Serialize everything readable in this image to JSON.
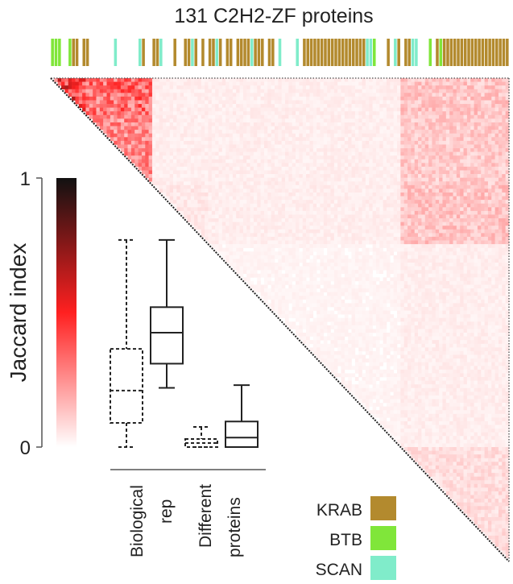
{
  "chart_data": [
    {
      "type": "heatmap",
      "title": "131 C2H2-ZF proteins",
      "n_proteins": 131,
      "layout": "upper-triangle",
      "colorbar": {
        "label": "Jaccard index",
        "range": [
          0,
          1
        ],
        "ticks": [
          "0",
          "1"
        ],
        "colors": [
          "#ffffff",
          "#ff2020",
          "#111111"
        ]
      },
      "annotation_runs": [
        [
          "BTB",
          3
        ],
        [
          "none",
          2
        ],
        [
          "BTB",
          1
        ],
        [
          "KRAB",
          2
        ],
        [
          "none",
          1
        ],
        [
          "KRAB",
          2
        ],
        [
          "none",
          7
        ],
        [
          "SCAN",
          1
        ],
        [
          "none",
          6
        ],
        [
          "SCAN",
          1
        ],
        [
          "KRAB",
          1
        ],
        [
          "none",
          2
        ],
        [
          "KRAB",
          2
        ],
        [
          "SCAN",
          1
        ],
        [
          "none",
          3
        ],
        [
          "KRAB",
          1
        ],
        [
          "none",
          2
        ],
        [
          "KRAB",
          2
        ],
        [
          "SCAN",
          1
        ],
        [
          "KRAB",
          1
        ],
        [
          "none",
          1
        ],
        [
          "KRAB",
          1
        ],
        [
          "none",
          1
        ],
        [
          "KRAB",
          2
        ],
        [
          "SCAN",
          1
        ],
        [
          "KRAB",
          1
        ],
        [
          "none",
          1
        ],
        [
          "KRAB",
          2
        ],
        [
          "none",
          1
        ],
        [
          "KRAB",
          4
        ],
        [
          "SCAN",
          1
        ],
        [
          "KRAB",
          3
        ],
        [
          "none",
          1
        ],
        [
          "KRAB",
          2
        ],
        [
          "none",
          1
        ],
        [
          "SCAN",
          1
        ],
        [
          "none",
          4
        ],
        [
          "SCAN",
          1
        ],
        [
          "none",
          1
        ],
        [
          "KRAB",
          18
        ],
        [
          "SCAN",
          2
        ],
        [
          "BTB",
          1
        ],
        [
          "none",
          3
        ],
        [
          "KRAB",
          1
        ],
        [
          "none",
          1
        ],
        [
          "SCAN",
          1
        ],
        [
          "KRAB",
          1
        ],
        [
          "none",
          1
        ],
        [
          "KRAB",
          2
        ],
        [
          "SCAN",
          2
        ],
        [
          "none",
          3
        ],
        [
          "BTB",
          1
        ],
        [
          "none",
          1
        ],
        [
          "KRAB",
          1
        ],
        [
          "BTB",
          1
        ],
        [
          "KRAB",
          19
        ]
      ],
      "block_boundaries": [
        0,
        10,
        29,
        45,
        100,
        131
      ],
      "block_mean_jaccard": [
        [
          0.35,
          0.25,
          0.03,
          0.03,
          0.1
        ],
        [
          0.25,
          0.2,
          0.03,
          0.03,
          0.09
        ],
        [
          0.03,
          0.03,
          0.04,
          0.03,
          0.1
        ],
        [
          0.03,
          0.03,
          0.03,
          0.02,
          0.03
        ],
        [
          0.1,
          0.09,
          0.1,
          0.03,
          0.06
        ]
      ]
    },
    {
      "type": "box",
      "ylabel": "Jaccard index",
      "ylim": [
        0,
        1
      ],
      "yticks": [
        "0",
        "1"
      ],
      "groups": [
        {
          "label_lines": [
            "Biological",
            "rep"
          ],
          "boxes": [
            {
              "style": "dashed",
              "min": 0.0,
              "q1": 0.09,
              "median": 0.21,
              "q3": 0.365,
              "max": 0.77
            },
            {
              "style": "solid",
              "min": 0.22,
              "q1": 0.31,
              "median": 0.425,
              "q3": 0.52,
              "max": 0.77
            }
          ]
        },
        {
          "label_lines": [
            "Different",
            "proteins"
          ],
          "boxes": [
            {
              "style": "dashed",
              "min": 0.0,
              "q1": 0.0,
              "median": 0.015,
              "q3": 0.03,
              "max": 0.075
            },
            {
              "style": "solid",
              "min": 0.0,
              "q1": 0.0,
              "median": 0.035,
              "q3": 0.095,
              "max": 0.23
            }
          ]
        }
      ]
    }
  ],
  "legend": [
    {
      "label": "KRAB",
      "color": "#b38a2e"
    },
    {
      "label": "BTB",
      "color": "#80e63a"
    },
    {
      "label": "SCAN",
      "color": "#80ecca"
    }
  ]
}
